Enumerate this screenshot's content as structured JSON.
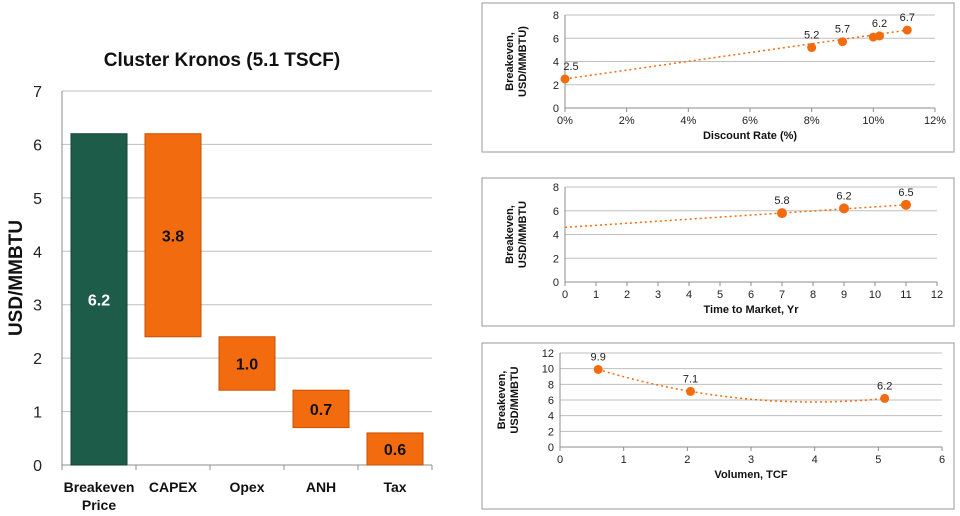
{
  "colors": {
    "total_bar": "#1e5c4a",
    "component_bar": "#f26b0f",
    "bar_edge": "#c95000",
    "trend": "#f26b0f"
  },
  "chart_data": [
    {
      "type": "bar",
      "subtype": "waterfall",
      "title": "Cluster Kronos (5.1 TSCF)",
      "ylabel": "USD/MMBTU",
      "ylim": [
        0,
        7
      ],
      "yticks": [
        "0",
        "1",
        "2",
        "3",
        "4",
        "5",
        "6",
        "7"
      ],
      "grid": true,
      "categories": [
        "Breakeven\nPrice",
        "CAPEX",
        "Opex",
        "ANH",
        "Tax"
      ],
      "bars": [
        {
          "label": "6.2",
          "value": 6.2,
          "base": 0,
          "kind": "total"
        },
        {
          "label": "3.8",
          "value": 3.8,
          "base": 2.4,
          "kind": "component"
        },
        {
          "label": "1.0",
          "value": 1.0,
          "base": 1.4,
          "kind": "component"
        },
        {
          "label": "0.7",
          "value": 0.7,
          "base": 0.7,
          "kind": "component"
        },
        {
          "label": "0.6",
          "value": 0.6,
          "base": 0.0,
          "kind": "component"
        }
      ]
    },
    {
      "type": "scatter",
      "xlabel": "Discount Rate (%)",
      "ylabel": [
        "Breakeven,",
        "USD/MMBTU)"
      ],
      "xlim": [
        0,
        12
      ],
      "ylim": [
        0,
        8
      ],
      "xticks": [
        "0%",
        "2%",
        "4%",
        "6%",
        "8%",
        "10%",
        "12%"
      ],
      "yticks": [
        "0",
        "2",
        "4",
        "6",
        "8"
      ],
      "points": [
        {
          "x": 0,
          "y": 2.5,
          "label": "2.5"
        },
        {
          "x": 8,
          "y": 5.2,
          "label": "5.2"
        },
        {
          "x": 9,
          "y": 5.7,
          "label": "5.7"
        },
        {
          "x": 10,
          "y": 6.1,
          "label": ""
        },
        {
          "x": 10.2,
          "y": 6.2,
          "label": "6.2"
        },
        {
          "x": 11.1,
          "y": 6.7,
          "label": "6.7"
        }
      ],
      "trendline": {
        "type": "linear",
        "x": [
          0,
          11.1
        ],
        "y": [
          2.5,
          6.7
        ]
      }
    },
    {
      "type": "scatter",
      "xlabel": "Time to Market, Yr",
      "ylabel": [
        "Breakeven,",
        "USD/MMBTU"
      ],
      "xlim": [
        0,
        12
      ],
      "ylim": [
        0,
        8
      ],
      "xticks": [
        "0",
        "1",
        "2",
        "3",
        "4",
        "5",
        "6",
        "7",
        "8",
        "9",
        "10",
        "11",
        "12"
      ],
      "yticks": [
        "0",
        "2",
        "4",
        "6",
        "8"
      ],
      "points": [
        {
          "x": 7,
          "y": 5.8,
          "label": "5.8"
        },
        {
          "x": 9,
          "y": 6.2,
          "label": "6.2"
        },
        {
          "x": 11,
          "y": 6.5,
          "label": "6.5"
        }
      ],
      "trendline": {
        "type": "linear",
        "x": [
          0,
          11
        ],
        "y": [
          4.6,
          6.5
        ]
      }
    },
    {
      "type": "scatter",
      "xlabel": "Volumen, TCF",
      "ylabel": [
        "Breakeven,",
        "USD/MMBTU"
      ],
      "xlim": [
        0,
        6
      ],
      "ylim": [
        0,
        12
      ],
      "xticks": [
        "0",
        "1",
        "2",
        "3",
        "4",
        "5",
        "6"
      ],
      "yticks": [
        "0",
        "2",
        "4",
        "6",
        "8",
        "10",
        "12"
      ],
      "points": [
        {
          "x": 0.6,
          "y": 9.9,
          "label": "9.9"
        },
        {
          "x": 2.05,
          "y": 7.1,
          "label": "7.1"
        },
        {
          "x": 5.1,
          "y": 6.2,
          "label": "6.2"
        }
      ],
      "trendline": {
        "type": "polynomial",
        "order": 2,
        "x": [
          0.6,
          2.05,
          5.1
        ],
        "y": [
          9.9,
          7.1,
          6.2
        ]
      }
    }
  ]
}
